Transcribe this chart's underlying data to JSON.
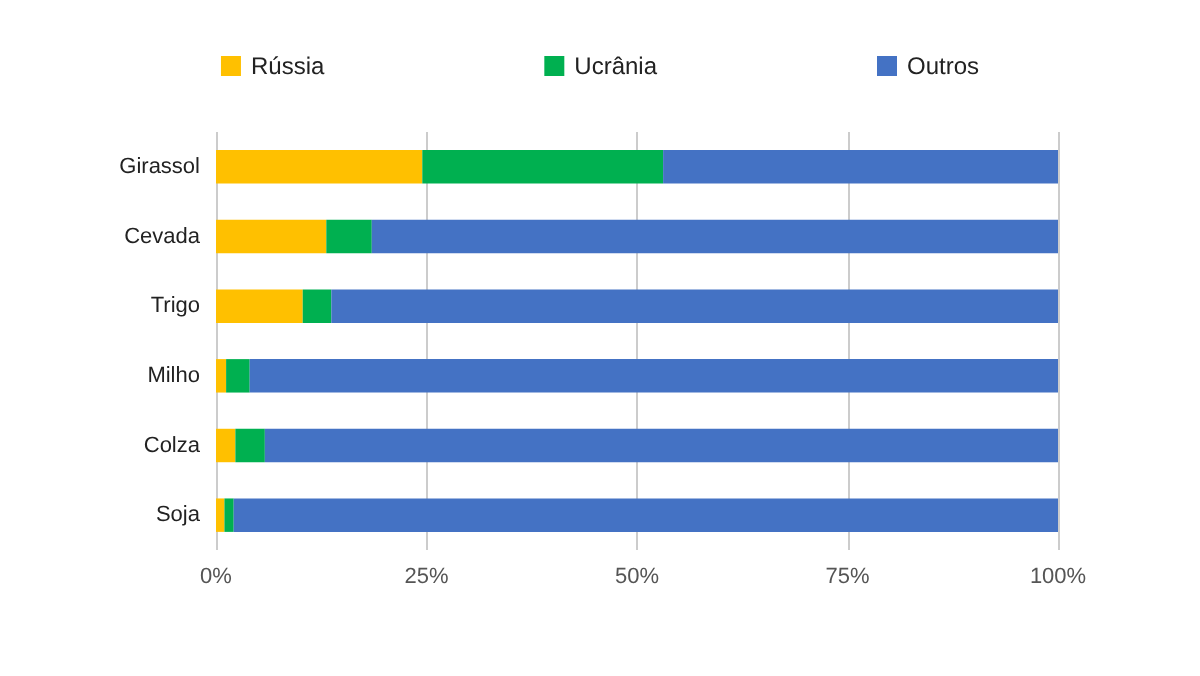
{
  "chart_data": {
    "type": "bar",
    "orientation": "horizontal",
    "stacked": true,
    "categories": [
      "Girassol",
      "Cevada",
      "Trigo",
      "Milho",
      "Colza",
      "Soja"
    ],
    "series": [
      {
        "name": "Rússia",
        "color": "#ffc000",
        "values": [
          24.5,
          13.1,
          10.3,
          1.2,
          2.3,
          1.0
        ]
      },
      {
        "name": "Ucrânia",
        "color": "#00b050",
        "values": [
          28.6,
          5.4,
          3.4,
          2.8,
          3.5,
          1.1
        ]
      },
      {
        "name": "Outros",
        "color": "#4472c4",
        "values": [
          46.9,
          81.5,
          86.3,
          96.0,
          94.2,
          97.9
        ]
      }
    ],
    "xlim": [
      0,
      100
    ],
    "xticks": [
      {
        "value": 0,
        "label": "0%"
      },
      {
        "value": 25,
        "label": "25%"
      },
      {
        "value": 50,
        "label": "50%"
      },
      {
        "value": 75,
        "label": "75%"
      },
      {
        "value": 100,
        "label": "100%"
      }
    ],
    "grid": "x",
    "legend": "top"
  }
}
